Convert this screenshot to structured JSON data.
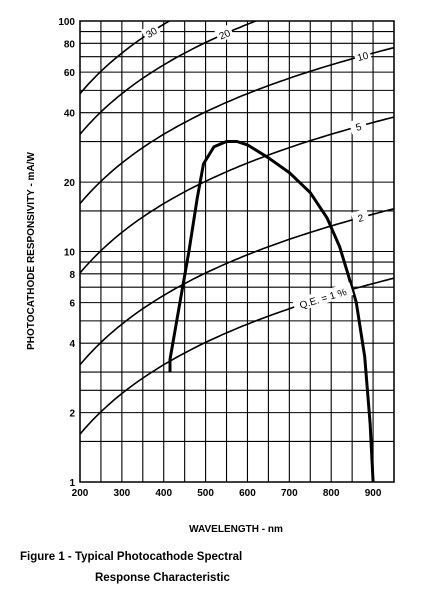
{
  "chart_data": {
    "type": "line",
    "title": "",
    "xlabel": "WAVELENGTH - nm",
    "ylabel": "PHOTOCATHODE RESPONSIVITY - mA/W",
    "x_ticks": [
      200,
      300,
      400,
      500,
      600,
      700,
      800,
      900
    ],
    "x_tick_labels": [
      "200",
      "300",
      "400",
      "500",
      "600",
      "700",
      "800",
      "900"
    ],
    "xlim": [
      200,
      950
    ],
    "y_scale": "log",
    "y_ticks": [
      1,
      2,
      4,
      6,
      8,
      10,
      20,
      40,
      60,
      80,
      100
    ],
    "y_tick_labels": [
      "1",
      "2",
      "4",
      "6",
      "8",
      "10",
      "20",
      "40",
      "60",
      "80",
      "100"
    ],
    "ylim": [
      1,
      100
    ],
    "grid": true,
    "qe_lines": [
      {
        "label": "30",
        "qe_percent": 30
      },
      {
        "label": "20",
        "qe_percent": 20
      },
      {
        "label": "10",
        "qe_percent": 10
      },
      {
        "label": "5",
        "qe_percent": 5
      },
      {
        "label": "2",
        "qe_percent": 2
      },
      {
        "label": "Q.E. = 1 %",
        "qe_percent": 1
      }
    ],
    "series": [
      {
        "x": [
          415,
          415,
          435,
          460,
          480,
          495,
          520,
          550,
          575,
          600,
          650,
          700,
          750,
          790,
          820,
          840,
          860,
          880,
          893,
          900
        ],
        "y": [
          3.0,
          3.4,
          5.5,
          10,
          17,
          24,
          28.5,
          30,
          30,
          29,
          25.5,
          22,
          18,
          14,
          10.5,
          8,
          6,
          3.5,
          1.8,
          1.0
        ]
      }
    ]
  },
  "caption": {
    "line1": "Figure 1 - Typical Photocathode Spectral",
    "line2": "Response Characteristic"
  }
}
